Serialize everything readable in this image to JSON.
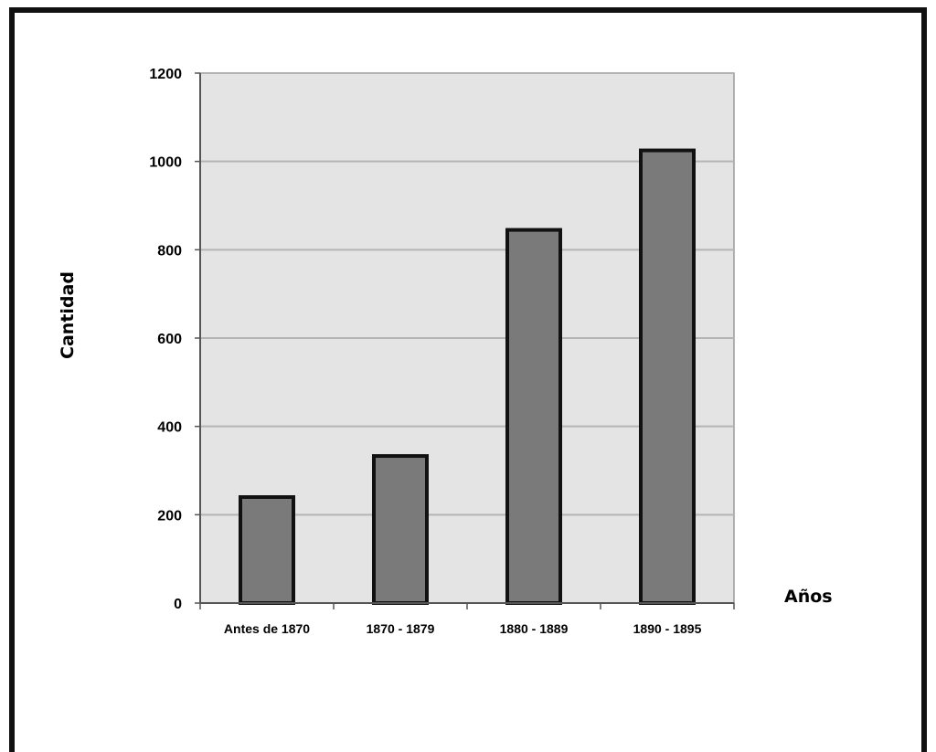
{
  "chart_data": {
    "type": "bar",
    "categories": [
      "Antes de 1870",
      "1870 - 1879",
      "1880 - 1889",
      "1890 - 1895"
    ],
    "values": [
      240,
      333,
      845,
      1025
    ],
    "title": "",
    "xlabel": "Años",
    "ylabel": "Cantidad",
    "ylim": [
      0,
      1200
    ],
    "yticks": [
      0,
      200,
      400,
      600,
      800,
      1000,
      1200
    ],
    "grid": true,
    "legend": "none",
    "colors": {
      "bar_fill": "#7a7a7a",
      "bar_stroke": "#111111",
      "plot_background": "#e4e4e4",
      "grid": "#b4b4b4"
    }
  }
}
